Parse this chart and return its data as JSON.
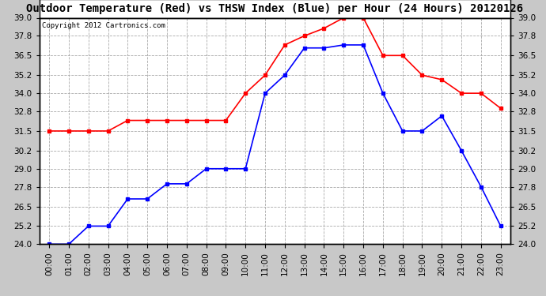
{
  "title": "Outdoor Temperature (Red) vs THSW Index (Blue) per Hour (24 Hours) 20120126",
  "copyright": "Copyright 2012 Cartronics.com",
  "hours": [
    "00:00",
    "01:00",
    "02:00",
    "03:00",
    "04:00",
    "05:00",
    "06:00",
    "07:00",
    "08:00",
    "09:00",
    "10:00",
    "11:00",
    "12:00",
    "13:00",
    "14:00",
    "15:00",
    "16:00",
    "17:00",
    "18:00",
    "19:00",
    "20:00",
    "21:00",
    "22:00",
    "23:00"
  ],
  "red_data": [
    31.5,
    31.5,
    31.5,
    31.5,
    32.2,
    32.2,
    32.2,
    32.2,
    32.2,
    32.2,
    34.0,
    35.2,
    37.2,
    37.8,
    38.3,
    39.0,
    39.0,
    36.5,
    36.5,
    35.2,
    34.9,
    34.0,
    34.0,
    33.0
  ],
  "blue_data": [
    24.0,
    24.0,
    25.2,
    25.2,
    27.0,
    27.0,
    28.0,
    28.0,
    29.0,
    29.0,
    29.0,
    34.0,
    35.2,
    37.0,
    37.0,
    37.2,
    37.2,
    34.0,
    31.5,
    31.5,
    32.5,
    30.2,
    27.8,
    25.2
  ],
  "ylim": [
    24.0,
    39.0
  ],
  "yticks": [
    24.0,
    25.2,
    26.5,
    27.8,
    29.0,
    30.2,
    31.5,
    32.8,
    34.0,
    35.2,
    36.5,
    37.8,
    39.0
  ],
  "fig_bg": "#c8c8c8",
  "title_bg": "#ffffff",
  "plot_bg": "#ffffff",
  "red_color": "#ff0000",
  "blue_color": "#0000ff",
  "grid_color": "#aaaaaa",
  "title_fontsize": 10,
  "copyright_fontsize": 6.5,
  "tick_fontsize": 7.5
}
